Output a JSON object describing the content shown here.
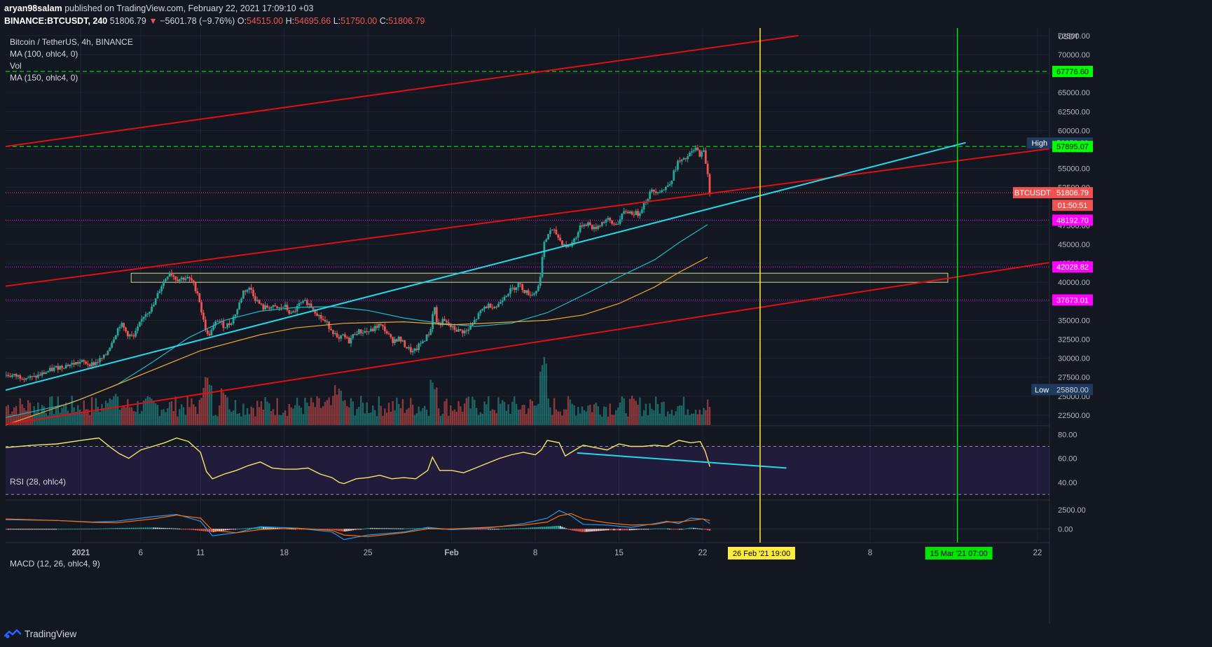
{
  "header": {
    "author": "aryan98salam",
    "published_text": "published on TradingView.com, February 22, 2021 17:09:10 +03",
    "symbol": "BINANCE:BTCUSDT, 240",
    "last": "51806.79",
    "change": "−5601.78 (−9.76%)",
    "o_label": "O:",
    "o": "54515.00",
    "h_label": "H:",
    "h": "54695.66",
    "l_label": "L:",
    "l": "51750.00",
    "c_label": "C:",
    "c": "51806.79"
  },
  "legend": {
    "title": "Bitcoin / TetherUS, 4h, BINANCE",
    "ma100": "MA (100, ohlc4, 0)",
    "vol": "Vol",
    "ma150": "MA (150, ohlc4, 0)",
    "rsi": "RSI (28, ohlc4)",
    "macd": "MACD (12, 26, ohlc4, 9)"
  },
  "footer": {
    "brand": "TradingView"
  },
  "colors": {
    "background": "#131722",
    "red_channel": "#e01010",
    "cyan_trend": "#26d7e8",
    "green_level": "#00ff00",
    "magenta_level": "#ff00ff",
    "yellow_vline": "#ffeb3b",
    "green_vline": "#00e600",
    "ma100": "#1fb8c9",
    "ma150": "#f0a830",
    "rsi": "#f5e663",
    "up_candle": "#26a69a",
    "down_candle": "#ef5350"
  },
  "chart_data": {
    "type": "candlestick",
    "symbol": "BTCUSDT",
    "timeframe": "4h",
    "price_axis": {
      "unit": "USDT",
      "ticks": [
        "72500.00",
        "70000.00",
        "67500.00",
        "65000.00",
        "62500.00",
        "60000.00",
        "57500.00",
        "55000.00",
        "52500.00",
        "50000.00",
        "47500.00",
        "45000.00",
        "42500.00",
        "40000.00",
        "37500.00",
        "35000.00",
        "32500.00",
        "30000.00",
        "27500.00",
        "25000.00",
        "22500.00"
      ],
      "range": [
        21200,
        73500
      ]
    },
    "time_axis": {
      "ticks": [
        "2021",
        "6",
        "11",
        "18",
        "25",
        "Feb",
        "8",
        "15",
        "22",
        "8",
        "15",
        "22"
      ],
      "tick_days": [
        0,
        5,
        10,
        17,
        24,
        31,
        38,
        45,
        52,
        66,
        73,
        80
      ],
      "day_range": [
        -6.3,
        81
      ]
    },
    "price_badges": [
      {
        "label": "High",
        "value": "58352.80"
      },
      {
        "label": "",
        "value": "57895.07"
      },
      {
        "label": "",
        "value": "67776.60"
      },
      {
        "label": "BTCUSDT",
        "value": "51806.79"
      },
      {
        "label": "",
        "value": "01:50:51"
      },
      {
        "label": "",
        "value": "48192.70"
      },
      {
        "label": "",
        "value": "42028.82"
      },
      {
        "label": "",
        "value": "37673.01"
      },
      {
        "label": "Low",
        "value": "25880.00"
      }
    ],
    "horizontal_levels": [
      {
        "price": 67776.6,
        "style": "green-dashed"
      },
      {
        "price": 57895.07,
        "style": "green-dashed"
      },
      {
        "price": 48192.7,
        "style": "magenta-dotted"
      },
      {
        "price": 42028.82,
        "style": "magenta-dotted"
      },
      {
        "price": 37673.01,
        "style": "magenta-dotted"
      },
      {
        "price": 51806.79,
        "style": "red-dotted"
      }
    ],
    "support_box": {
      "day_start": 4.2,
      "day_end": 72.5,
      "price_low": 40000,
      "price_high": 41200
    },
    "vertical_markers": [
      {
        "label": "26 Feb '21   19:00",
        "day": 56.8,
        "color": "yellow"
      },
      {
        "label": "15 Mar '21   07:00",
        "day": 73.3,
        "color": "green"
      }
    ],
    "trend_lines": [
      {
        "color": "red",
        "points": [
          [
            -6.3,
            57900
          ],
          [
            60,
            72500
          ]
        ]
      },
      {
        "color": "red",
        "points": [
          [
            -6.3,
            39500
          ],
          [
            81,
            57600
          ]
        ]
      },
      {
        "color": "red",
        "points": [
          [
            -6.3,
            21300
          ],
          [
            81,
            42600
          ]
        ]
      },
      {
        "color": "cyan",
        "points": [
          [
            -6.3,
            25800
          ],
          [
            74,
            58400
          ]
        ]
      }
    ],
    "close_path": [
      [
        -6.3,
        27800
      ],
      [
        -4,
        27400
      ],
      [
        -2,
        28800
      ],
      [
        0,
        29500
      ],
      [
        1,
        29200
      ],
      [
        2,
        30200
      ],
      [
        2.7,
        32600
      ],
      [
        3.3,
        34600
      ],
      [
        3.9,
        33200
      ],
      [
        4.4,
        32700
      ],
      [
        5.3,
        35800
      ],
      [
        6,
        36700
      ],
      [
        6.7,
        39500
      ],
      [
        7.4,
        41400
      ],
      [
        8,
        40400
      ],
      [
        8.7,
        40600
      ],
      [
        9.2,
        40300
      ],
      [
        9.8,
        38500
      ],
      [
        10.2,
        35200
      ],
      [
        10.6,
        32900
      ],
      [
        11,
        33800
      ],
      [
        11.4,
        35100
      ],
      [
        12,
        34200
      ],
      [
        12.5,
        34600
      ],
      [
        13.1,
        36500
      ],
      [
        13.6,
        38900
      ],
      [
        14.2,
        39200
      ],
      [
        14.6,
        37800
      ],
      [
        15.2,
        36600
      ],
      [
        15.8,
        36800
      ],
      [
        16.5,
        36500
      ],
      [
        17,
        36900
      ],
      [
        17.6,
        35700
      ],
      [
        18.3,
        37100
      ],
      [
        18.9,
        37400
      ],
      [
        19.4,
        36600
      ],
      [
        20,
        35400
      ],
      [
        20.6,
        34500
      ],
      [
        21.2,
        33300
      ],
      [
        21.5,
        32200
      ],
      [
        21.9,
        33000
      ],
      [
        22.4,
        32200
      ],
      [
        23,
        33500
      ],
      [
        23.6,
        33500
      ],
      [
        24.3,
        33600
      ],
      [
        24.9,
        34400
      ],
      [
        25.4,
        33800
      ],
      [
        26,
        32300
      ],
      [
        26.6,
        32600
      ],
      [
        27.2,
        31500
      ],
      [
        27.8,
        30700
      ],
      [
        28.4,
        31900
      ],
      [
        29,
        33000
      ],
      [
        29.3,
        34000
      ],
      [
        29.5,
        37500
      ],
      [
        29.8,
        34300
      ],
      [
        30.3,
        34900
      ],
      [
        31,
        34000
      ],
      [
        31.6,
        33600
      ],
      [
        32.3,
        33500
      ],
      [
        33,
        35100
      ],
      [
        33.7,
        36700
      ],
      [
        34.2,
        37000
      ],
      [
        34.8,
        36800
      ],
      [
        35.4,
        38300
      ],
      [
        36,
        39000
      ],
      [
        36.6,
        39800
      ],
      [
        37.2,
        38700
      ],
      [
        37.8,
        38400
      ],
      [
        38.3,
        39500
      ],
      [
        38.7,
        44800
      ],
      [
        39.2,
        46900
      ],
      [
        39.7,
        46500
      ],
      [
        40.2,
        45200
      ],
      [
        40.8,
        44600
      ],
      [
        41.3,
        45800
      ],
      [
        41.9,
        47600
      ],
      [
        42.4,
        47800
      ],
      [
        42.9,
        47000
      ],
      [
        43.5,
        47800
      ],
      [
        44,
        48300
      ],
      [
        44.5,
        47600
      ],
      [
        45,
        48000
      ],
      [
        45.5,
        49400
      ],
      [
        46,
        49200
      ],
      [
        46.6,
        49000
      ],
      [
        47.2,
        50700
      ],
      [
        47.7,
        52000
      ],
      [
        48.3,
        52100
      ],
      [
        48.8,
        52200
      ],
      [
        49.4,
        53600
      ],
      [
        49.9,
        55800
      ],
      [
        50.4,
        56000
      ],
      [
        50.9,
        56800
      ],
      [
        51.4,
        57600
      ],
      [
        51.8,
        56800
      ],
      [
        52.1,
        57200
      ],
      [
        52.4,
        54500
      ],
      [
        52.6,
        51800
      ]
    ],
    "ma100_path": [
      [
        -6.3,
        22200
      ],
      [
        -1,
        24000
      ],
      [
        3,
        26500
      ],
      [
        6,
        29500
      ],
      [
        9,
        32700
      ],
      [
        12,
        35000
      ],
      [
        15,
        36200
      ],
      [
        18,
        36700
      ],
      [
        21,
        36800
      ],
      [
        24,
        36300
      ],
      [
        27,
        35300
      ],
      [
        30,
        34600
      ],
      [
        33,
        34200
      ],
      [
        36,
        34600
      ],
      [
        39,
        36000
      ],
      [
        42,
        38300
      ],
      [
        45,
        40700
      ],
      [
        48,
        43000
      ],
      [
        50,
        45200
      ],
      [
        52.4,
        47600
      ]
    ],
    "ma150_path": [
      [
        -6.3,
        21200
      ],
      [
        0,
        24600
      ],
      [
        5,
        27800
      ],
      [
        10,
        31000
      ],
      [
        15,
        33100
      ],
      [
        18,
        34000
      ],
      [
        22,
        34600
      ],
      [
        27,
        34800
      ],
      [
        31,
        34400
      ],
      [
        35,
        34700
      ],
      [
        39,
        35000
      ],
      [
        42,
        35700
      ],
      [
        45,
        37200
      ],
      [
        48,
        39400
      ],
      [
        50,
        41300
      ],
      [
        52.4,
        43300
      ]
    ],
    "volume": {
      "description": "volume histogram bars along bottom of price pane"
    },
    "rsi": {
      "levels": [
        80.0,
        60.0,
        40.0
      ],
      "tick_labels": [
        "80.00",
        "60.00",
        "40.00"
      ],
      "band": [
        30,
        70
      ],
      "path": [
        [
          -6.3,
          69
        ],
        [
          -4,
          71
        ],
        [
          -2,
          72
        ],
        [
          0,
          75
        ],
        [
          1.5,
          77
        ],
        [
          2.5,
          69
        ],
        [
          3.2,
          64
        ],
        [
          4,
          60
        ],
        [
          5,
          67
        ],
        [
          6,
          70
        ],
        [
          7,
          73
        ],
        [
          8,
          77
        ],
        [
          9,
          74
        ],
        [
          10,
          65
        ],
        [
          10.5,
          49
        ],
        [
          11,
          43
        ],
        [
          12,
          47
        ],
        [
          13,
          50
        ],
        [
          14,
          54
        ],
        [
          15,
          57
        ],
        [
          16,
          52
        ],
        [
          17,
          51
        ],
        [
          18,
          51
        ],
        [
          19,
          52
        ],
        [
          20,
          47
        ],
        [
          21,
          44
        ],
        [
          21.6,
          40
        ],
        [
          22,
          39
        ],
        [
          23,
          43
        ],
        [
          24,
          44
        ],
        [
          25,
          46
        ],
        [
          26,
          43
        ],
        [
          27,
          44
        ],
        [
          28,
          43
        ],
        [
          29,
          50
        ],
        [
          29.4,
          61
        ],
        [
          30,
          50
        ],
        [
          31,
          50
        ],
        [
          32,
          48
        ],
        [
          33,
          52
        ],
        [
          34,
          56
        ],
        [
          35,
          60
        ],
        [
          36,
          63
        ],
        [
          37,
          65
        ],
        [
          38,
          63
        ],
        [
          38.5,
          67
        ],
        [
          39,
          75
        ],
        [
          40,
          73
        ],
        [
          40.5,
          62
        ],
        [
          41,
          65
        ],
        [
          42,
          71
        ],
        [
          43,
          69
        ],
        [
          44,
          67
        ],
        [
          45,
          72
        ],
        [
          46,
          70
        ],
        [
          47,
          70
        ],
        [
          48,
          71
        ],
        [
          49,
          70
        ],
        [
          50,
          75
        ],
        [
          51,
          73
        ],
        [
          51.8,
          74
        ],
        [
          52.2,
          66
        ],
        [
          52.6,
          53
        ]
      ],
      "trendline": [
        [
          41.5,
          64.5
        ],
        [
          59,
          52
        ]
      ]
    },
    "macd": {
      "tick_labels": [
        "2500.00",
        "0.00"
      ],
      "range": [
        -1800,
        3600
      ],
      "macd_line": [
        [
          -6.3,
          1200
        ],
        [
          -2,
          1100
        ],
        [
          1,
          900
        ],
        [
          3,
          1000
        ],
        [
          6,
          1600
        ],
        [
          8,
          1900
        ],
        [
          10,
          1000
        ],
        [
          11,
          -900
        ],
        [
          13,
          -500
        ],
        [
          15,
          300
        ],
        [
          18,
          100
        ],
        [
          21,
          -400
        ],
        [
          22,
          -1400
        ],
        [
          24,
          -800
        ],
        [
          27,
          -400
        ],
        [
          29,
          200
        ],
        [
          31,
          -100
        ],
        [
          34,
          100
        ],
        [
          37,
          700
        ],
        [
          39,
          1400
        ],
        [
          40,
          2400
        ],
        [
          41,
          1700
        ],
        [
          42,
          600
        ],
        [
          44,
          500
        ],
        [
          46,
          200
        ],
        [
          48,
          700
        ],
        [
          49,
          1000
        ],
        [
          50,
          700
        ],
        [
          51,
          1400
        ],
        [
          52,
          1300
        ],
        [
          52.6,
          700
        ]
      ],
      "signal_line": [
        [
          -6.3,
          1300
        ],
        [
          -2,
          1100
        ],
        [
          1,
          850
        ],
        [
          3,
          800
        ],
        [
          6,
          1300
        ],
        [
          8,
          1800
        ],
        [
          10,
          1400
        ],
        [
          11,
          -200
        ],
        [
          13,
          -500
        ],
        [
          15,
          -100
        ],
        [
          18,
          100
        ],
        [
          21,
          -200
        ],
        [
          22,
          -800
        ],
        [
          24,
          -1000
        ],
        [
          27,
          -500
        ],
        [
          29,
          0
        ],
        [
          31,
          0
        ],
        [
          34,
          200
        ],
        [
          37,
          500
        ],
        [
          39,
          900
        ],
        [
          40,
          1700
        ],
        [
          41,
          2000
        ],
        [
          42,
          1300
        ],
        [
          44,
          800
        ],
        [
          46,
          500
        ],
        [
          48,
          600
        ],
        [
          49,
          900
        ],
        [
          50,
          900
        ],
        [
          51,
          1100
        ],
        [
          52,
          1300
        ],
        [
          52.6,
          1100
        ]
      ]
    }
  }
}
